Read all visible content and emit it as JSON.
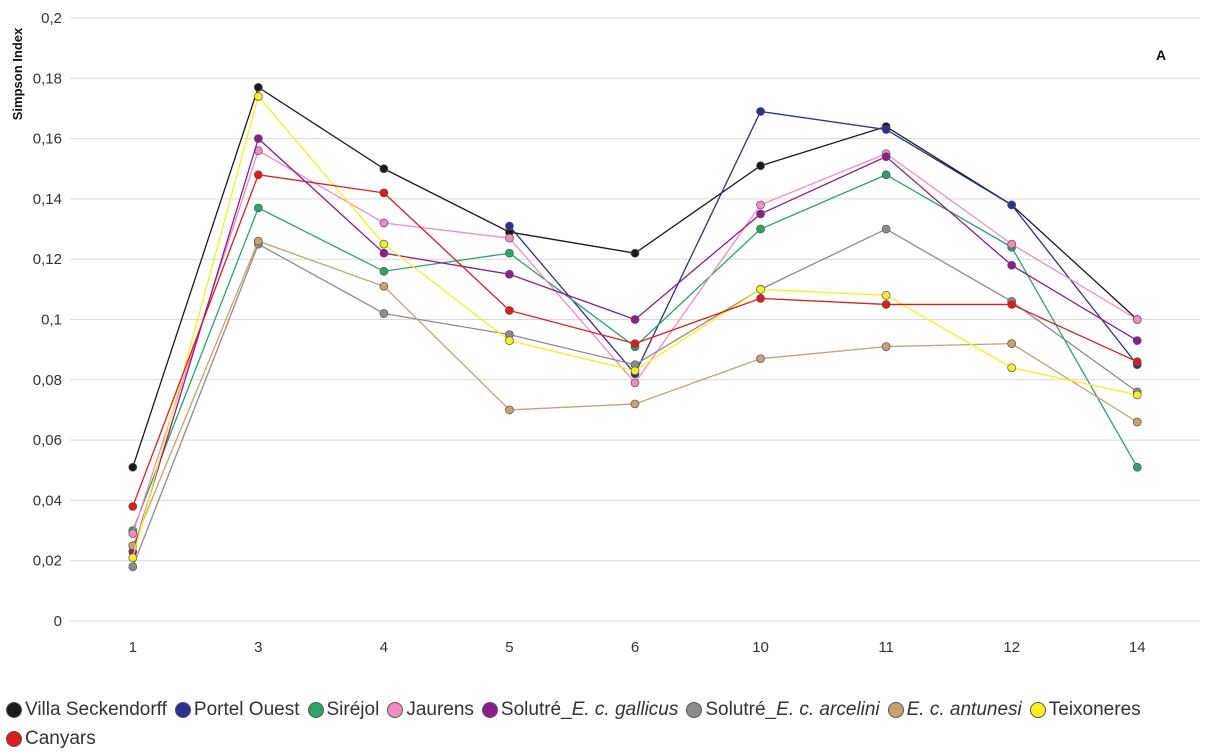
{
  "chart_data": {
    "type": "line",
    "title": "",
    "xlabel": "",
    "ylabel": "Simpson Index",
    "annotation": "A",
    "categories": [
      "1",
      "3",
      "4",
      "5",
      "6",
      "10",
      "11",
      "12",
      "14"
    ],
    "ylim": [
      0,
      0.2
    ],
    "yticks": [
      {
        "value": 0,
        "label": "0"
      },
      {
        "value": 0.02,
        "label": "0,02"
      },
      {
        "value": 0.04,
        "label": "0,04"
      },
      {
        "value": 0.06,
        "label": "0,06"
      },
      {
        "value": 0.08,
        "label": "0,08"
      },
      {
        "value": 0.1,
        "label": "0,1"
      },
      {
        "value": 0.12,
        "label": "0,12"
      },
      {
        "value": 0.14,
        "label": "0,14"
      },
      {
        "value": 0.16,
        "label": "0,16"
      },
      {
        "value": 0.18,
        "label": "0,18"
      },
      {
        "value": 0.2,
        "label": "0,2"
      }
    ],
    "grid": true,
    "legend_position": "bottom",
    "series": [
      {
        "name": "Villa Seckendorff",
        "color": "#1a1a1a",
        "values": [
          0.051,
          0.177,
          0.15,
          0.129,
          0.122,
          0.151,
          0.164,
          0.138,
          0.1
        ]
      },
      {
        "name": "Portel Ouest",
        "color": "#2e2f8f",
        "values": [
          null,
          null,
          null,
          0.131,
          0.082,
          0.169,
          0.163,
          0.138,
          0.085
        ]
      },
      {
        "name": "Siréjol",
        "color": "#2aa468",
        "values": [
          0.03,
          0.137,
          0.116,
          0.122,
          0.091,
          0.13,
          0.148,
          0.124,
          0.051
        ]
      },
      {
        "name": "Jaurens",
        "color": "#f08cc0",
        "values": [
          0.029,
          0.156,
          0.132,
          0.127,
          0.079,
          0.138,
          0.155,
          0.125,
          0.1
        ]
      },
      {
        "name": "Solutré_E. c. gallicus",
        "name_prefix": "Solutré_",
        "name_italic": "E. c. gallicus",
        "color": "#8e1c8e",
        "values": [
          0.023,
          0.16,
          0.122,
          0.115,
          0.1,
          0.135,
          0.154,
          0.118,
          0.093
        ]
      },
      {
        "name": "Solutré_E. c. arcelini",
        "name_prefix": "Solutré_",
        "name_italic": "E. c. arcelini",
        "color": "#8c8c8c",
        "values": [
          0.018,
          0.125,
          0.102,
          0.095,
          0.085,
          0.11,
          0.13,
          0.106,
          0.076
        ]
      },
      {
        "name": "E. c. antunesi",
        "name_prefix": "",
        "name_italic": "E. c. antunesi",
        "color": "#c9a070",
        "values": [
          0.025,
          0.126,
          0.111,
          0.07,
          0.072,
          0.087,
          0.091,
          0.092,
          0.066
        ]
      },
      {
        "name": "Teixoneres",
        "color": "#f8ee22",
        "values": [
          0.021,
          0.174,
          0.125,
          0.093,
          0.083,
          0.11,
          0.108,
          0.084,
          0.075
        ]
      },
      {
        "name": "Canyars",
        "color": "#e01b1b",
        "values": [
          0.038,
          0.148,
          0.142,
          0.103,
          0.092,
          0.107,
          0.105,
          0.105,
          0.086
        ]
      }
    ]
  }
}
